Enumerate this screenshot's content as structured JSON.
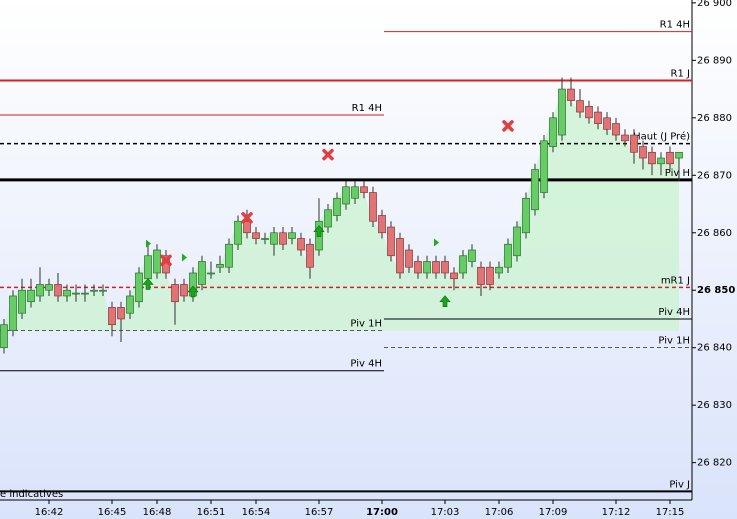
{
  "chart_data": {
    "type": "candlestick",
    "ylim": [
      26813.5,
      26900.5
    ],
    "yticks": [
      {
        "value": 26900,
        "label": "26 900"
      },
      {
        "value": 26890,
        "label": "26 890"
      },
      {
        "value": 26880,
        "label": "26 880"
      },
      {
        "value": 26870,
        "label": "26 870"
      },
      {
        "value": 26860,
        "label": "26 860"
      },
      {
        "value": 26850,
        "label": "26 850"
      },
      {
        "value": 26840,
        "label": "26 840"
      },
      {
        "value": 26830,
        "label": "26 830"
      },
      {
        "value": 26820,
        "label": "26 820"
      }
    ],
    "categories": [
      null,
      null,
      null,
      null,
      null,
      "16:42",
      null,
      null,
      null,
      null,
      null,
      null,
      "16:45",
      null,
      null,
      null,
      null,
      "16:48",
      null,
      null,
      null,
      null,
      null,
      "16:51",
      null,
      null,
      null,
      null,
      "16:54",
      null,
      null,
      null,
      null,
      null,
      null,
      "16:57",
      null,
      null,
      null,
      null,
      null,
      null,
      "17:00",
      null,
      null,
      null,
      null,
      null,
      null,
      "17:03",
      null,
      null,
      null,
      null,
      null,
      "17:06",
      null,
      null,
      null,
      null,
      null,
      "17:09",
      null,
      null,
      null,
      null,
      null,
      null,
      "17:12",
      null,
      null,
      null,
      null,
      null,
      "17:15",
      null
    ],
    "ohlc": [
      [
        26840,
        26845,
        26839,
        26844
      ],
      [
        26843,
        26850,
        26842,
        26849
      ],
      [
        26846,
        26852,
        26845,
        26850
      ],
      [
        26848,
        26852,
        26847,
        26850
      ],
      [
        26849,
        26854,
        26848,
        26851
      ],
      [
        26850,
        26852,
        26849,
        26851
      ],
      [
        26851,
        26853,
        26848,
        26849
      ],
      [
        26849,
        26851,
        26848,
        26850
      ],
      [
        26849.5,
        26851,
        26848,
        26849.5
      ],
      [
        26849.5,
        26851,
        26848,
        26849.5
      ],
      [
        26850,
        26851,
        26849,
        26850
      ],
      [
        26850,
        26851,
        26849,
        26850
      ],
      [
        26847,
        26848,
        26842,
        26844
      ],
      [
        26847,
        26848,
        26841,
        26845
      ],
      [
        26846,
        26850,
        26845,
        26849
      ],
      [
        26848,
        26854,
        26847,
        26853
      ],
      [
        26852,
        26858,
        26851,
        26856
      ],
      [
        26853,
        26858,
        26852,
        26857
      ],
      [
        26856,
        26857,
        26852,
        26853
      ],
      [
        26851,
        26852,
        26844,
        26848
      ],
      [
        26851,
        26852,
        26848,
        26849
      ],
      [
        26849,
        26854,
        26848,
        26853
      ],
      [
        26851,
        26856,
        26850,
        26855
      ],
      [
        26853,
        26855,
        26852,
        26853
      ],
      [
        26854,
        26856,
        26853,
        26854.5
      ],
      [
        26854,
        26859,
        26853,
        26858
      ],
      [
        26858,
        26863,
        26857,
        26862
      ],
      [
        26862,
        26864,
        26859,
        26860
      ],
      [
        26860,
        26861,
        26858,
        26859
      ],
      [
        26859,
        26860,
        26858,
        26859
      ],
      [
        26858,
        26861,
        26856,
        26860
      ],
      [
        26860,
        26861,
        26857,
        26858
      ],
      [
        26859,
        26861,
        26858,
        26860
      ],
      [
        26859,
        26860,
        26856,
        26857
      ],
      [
        26858,
        26859,
        26852,
        26854
      ],
      [
        26857,
        26866,
        26856,
        26862
      ],
      [
        26861,
        26865,
        26860,
        26864
      ],
      [
        26863,
        26867,
        26862,
        26866
      ],
      [
        26865,
        26869,
        26864,
        26868
      ],
      [
        26866,
        26869,
        26865,
        26868
      ],
      [
        26868,
        26869,
        26866,
        26867
      ],
      [
        26867,
        26868,
        26861,
        26862
      ],
      [
        26863,
        26864,
        26859,
        26860
      ],
      [
        26861,
        26862,
        26855,
        26856
      ],
      [
        26859,
        26860,
        26852,
        26853
      ],
      [
        26857,
        26858,
        26853,
        26854
      ],
      [
        26855,
        26856,
        26852,
        26853
      ],
      [
        26853,
        26856,
        26852,
        26855
      ],
      [
        26855,
        26856,
        26852,
        26853
      ],
      [
        26855,
        26856,
        26852,
        26853
      ],
      [
        26853,
        26854,
        26850,
        26852
      ],
      [
        26853,
        26857,
        26852,
        26856
      ],
      [
        26855,
        26858,
        26854,
        26857
      ],
      [
        26854,
        26855,
        26849,
        26851
      ],
      [
        26854,
        26855,
        26850,
        26851
      ],
      [
        26853,
        26855,
        26852,
        26854
      ],
      [
        26854,
        26859,
        26853,
        26858
      ],
      [
        26856,
        26862,
        26855,
        26861
      ],
      [
        26860,
        26867,
        26859,
        26866
      ],
      [
        26864,
        26872,
        26863,
        26871
      ],
      [
        26867,
        26877,
        26866,
        26876
      ],
      [
        26875,
        26881,
        26874,
        26880
      ],
      [
        26877,
        26887,
        26876,
        26885
      ],
      [
        26885,
        26887,
        26882,
        26883
      ],
      [
        26883,
        26885,
        26880,
        26881
      ],
      [
        26882,
        26883,
        26879,
        26880
      ],
      [
        26881,
        26882,
        26878,
        26879
      ],
      [
        26880,
        26881,
        26877,
        26878
      ],
      [
        26879,
        26880,
        26876,
        26877
      ],
      [
        26877,
        26878,
        26875,
        26876
      ],
      [
        26877,
        26878,
        26872,
        26874
      ],
      [
        26875,
        26876,
        26871,
        26873
      ],
      [
        26874,
        26875,
        26870,
        26872
      ],
      [
        26872,
        26874,
        26870,
        26873
      ],
      [
        26874,
        26875,
        26871,
        26872
      ],
      [
        26873,
        26874,
        26869,
        26874
      ]
    ],
    "up_color": "#66cc66",
    "down_color": "#e07474",
    "levels": [
      {
        "name": "R1 4H",
        "value": 26895,
        "color": "#d42020",
        "width": 1,
        "dash": false,
        "span": "right"
      },
      {
        "name": "R1 J",
        "value": 26886.5,
        "color": "#d42020",
        "width": 2,
        "dash": false,
        "span": "full"
      },
      {
        "name": "R1 4H",
        "value": 26880.5,
        "color": "#d42020",
        "width": 1,
        "dash": false,
        "span": "left"
      },
      {
        "name": "Haut (J Pré)",
        "value": 26875.5,
        "color": "#000000",
        "width": 1.5,
        "dash": true,
        "span": "full"
      },
      {
        "name": "Piv H",
        "value": 26869.2,
        "color": "#000000",
        "width": 3,
        "dash": false,
        "span": "full"
      },
      {
        "name": "mR1 J",
        "value": 26850.5,
        "color": "#d42020",
        "width": 1.5,
        "dash": true,
        "span": "full"
      },
      {
        "name": "Piv 1H",
        "value": 26843,
        "color": "#000000",
        "width": 0.7,
        "dash": true,
        "span": "left"
      },
      {
        "name": "Piv 4H",
        "value": 26845,
        "color": "#000000",
        "width": 1,
        "dash": false,
        "span": "right"
      },
      {
        "name": "Piv 1H",
        "value": 26840,
        "color": "#000000",
        "width": 0.7,
        "dash": true,
        "span": "right"
      },
      {
        "name": "Piv 4H",
        "value": 26836,
        "color": "#000000",
        "width": 1,
        "dash": false,
        "span": "left"
      },
      {
        "name": "Piv J",
        "value": 26815,
        "color": "#000000",
        "width": 2,
        "dash": false,
        "span": "full"
      }
    ],
    "signals": [
      {
        "kind": "cross",
        "index": 18,
        "value": 26855.2
      },
      {
        "kind": "cross",
        "index": 27,
        "value": 26862.6
      },
      {
        "kind": "cross",
        "index": 36,
        "value": 26873.6
      },
      {
        "kind": "cross",
        "index": 56,
        "value": 26878.6
      },
      {
        "kind": "up",
        "index": 16,
        "value": 26851
      },
      {
        "kind": "up",
        "index": 21,
        "value": 26849.7
      },
      {
        "kind": "up",
        "index": 35,
        "value": 26860.2
      },
      {
        "kind": "up",
        "index": 49,
        "value": 26848
      },
      {
        "kind": "flag",
        "index": 16,
        "value": 26858.1
      },
      {
        "kind": "flag",
        "index": 20,
        "value": 26855.7
      },
      {
        "kind": "flag",
        "index": 48,
        "value": 26858.3
      }
    ],
    "footnote": "e indicatives"
  }
}
